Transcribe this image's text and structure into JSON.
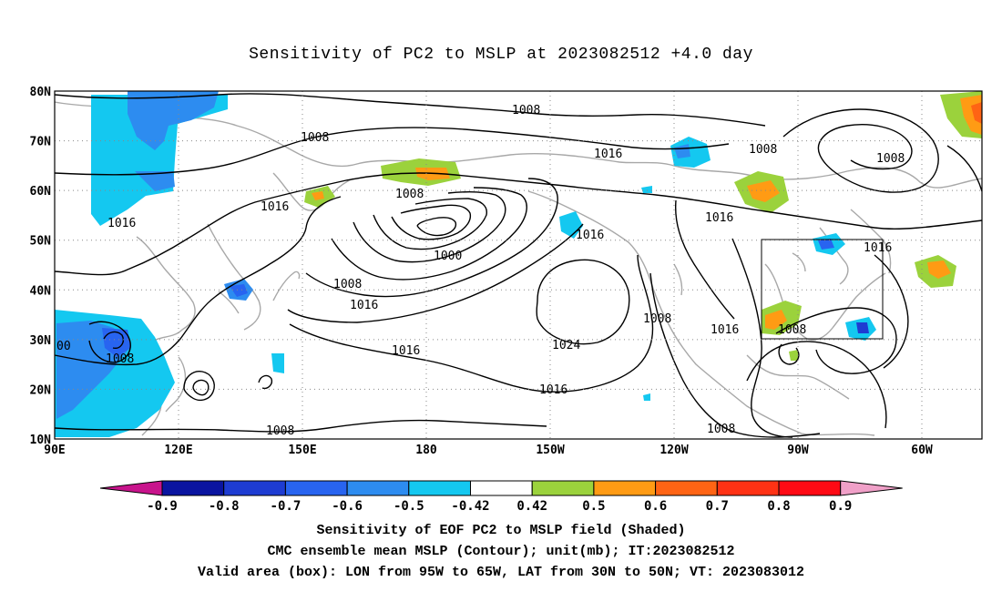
{
  "title": "Sensitivity of PC2 to MSLP at 2023082512 +4.0 day",
  "x_ticks": [
    "90E",
    "120E",
    "150E",
    "180",
    "150W",
    "120W",
    "90W",
    "60W"
  ],
  "y_ticks": [
    "80N",
    "70N",
    "60N",
    "50N",
    "40N",
    "30N",
    "20N",
    "10N"
  ],
  "contour_labels": [
    "1008",
    "1008",
    "1016",
    "1008",
    "1016",
    "1016",
    "1016",
    "1008",
    "1000",
    "1008",
    "1016",
    "1016",
    "1016",
    "1008",
    "1016",
    "1024",
    "1016",
    "1016",
    "1008",
    "1008",
    "1008",
    "00"
  ],
  "colorbar": {
    "labels": [
      "-0.9",
      "-0.8",
      "-0.7",
      "-0.6",
      "-0.5",
      "-0.42",
      "0.42",
      "0.5",
      "0.6",
      "0.7",
      "0.8",
      "0.9"
    ],
    "colors": [
      "#c8148c",
      "#0a14a0",
      "#1e3cd2",
      "#2864f0",
      "#2d8cf0",
      "#14c8f0",
      "#ffffff",
      "#9bd23c",
      "#ff9b14",
      "#ff6414",
      "#ff3214",
      "#ff0a14",
      "#f0a0c8"
    ]
  },
  "valid_box": {
    "lon_min": "95W",
    "lon_max": "65W",
    "lat_min": "30N",
    "lat_max": "50N"
  },
  "captions": {
    "line1": "Sensitivity of EOF PC2 to MSLP field (Shaded)",
    "line2": "CMC ensemble mean MSLP (Contour); unit(mb); IT:2023082512",
    "line3": "Valid area (box): LON from 95W to 65W, LAT from 30N to 50N; VT: 2023083012"
  }
}
